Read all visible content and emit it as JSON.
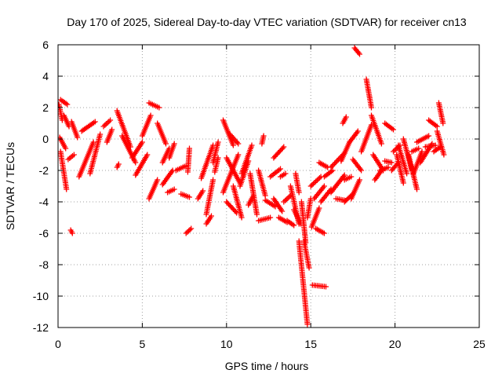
{
  "chart_data": {
    "type": "scatter",
    "title": "Day 170 of 2025, Sidereal Day-to-day VTEC variation (SDTVAR) for receiver cn13",
    "xlabel": "GPS time / hours",
    "ylabel": "SDTVAR / TECUs",
    "xlim": [
      0,
      25
    ],
    "ylim": [
      -12,
      6
    ],
    "xticks": [
      0,
      5,
      10,
      15,
      20,
      25
    ],
    "yticks": [
      -12,
      -10,
      -8,
      -6,
      -4,
      -2,
      0,
      2,
      4,
      6
    ],
    "grid": true,
    "marker": "+",
    "series": [
      {
        "name": "SDTVAR",
        "color": "#ff0000",
        "segments": [
          {
            "from": [
              0.05,
              2.2
            ],
            "to": [
              0.25,
              1.2
            ]
          },
          {
            "from": [
              0.15,
              2.5
            ],
            "to": [
              0.55,
              2.2
            ]
          },
          {
            "from": [
              0.35,
              1.5
            ],
            "to": [
              0.65,
              0.8
            ]
          },
          {
            "from": [
              0.1,
              0.1
            ],
            "to": [
              0.45,
              -0.6
            ]
          },
          {
            "from": [
              0.15,
              -0.8
            ],
            "to": [
              0.5,
              -3.2
            ]
          },
          {
            "from": [
              0.75,
              -5.8
            ],
            "to": [
              0.85,
              -6.0
            ]
          },
          {
            "from": [
              0.6,
              -1.3
            ],
            "to": [
              0.95,
              -1.0
            ]
          },
          {
            "from": [
              0.8,
              1.1
            ],
            "to": [
              1.15,
              0.1
            ]
          },
          {
            "from": [
              1.25,
              -2.4
            ],
            "to": [
              2.1,
              -0.2
            ]
          },
          {
            "from": [
              1.4,
              0.5
            ],
            "to": [
              2.2,
              1.1
            ]
          },
          {
            "from": [
              1.9,
              -2.2
            ],
            "to": [
              2.5,
              0.3
            ]
          },
          {
            "from": [
              2.7,
              0.8
            ],
            "to": [
              3.1,
              1.2
            ]
          },
          {
            "from": [
              2.9,
              -0.2
            ],
            "to": [
              3.2,
              0.6
            ]
          },
          {
            "from": [
              3.5,
              -1.8
            ],
            "to": [
              3.6,
              -1.6
            ]
          },
          {
            "from": [
              3.5,
              1.8
            ],
            "to": [
              4.3,
              -0.5
            ]
          },
          {
            "from": [
              3.8,
              0.2
            ],
            "to": [
              4.6,
              -1.5
            ]
          },
          {
            "from": [
              4.4,
              -1.2
            ],
            "to": [
              5.0,
              -0.2
            ]
          },
          {
            "from": [
              4.6,
              -2.3
            ],
            "to": [
              5.3,
              -1.0
            ]
          },
          {
            "from": [
              5.0,
              0.2
            ],
            "to": [
              5.5,
              1.5
            ]
          },
          {
            "from": [
              5.4,
              2.3
            ],
            "to": [
              6.0,
              2.0
            ]
          },
          {
            "from": [
              5.4,
              -3.8
            ],
            "to": [
              5.9,
              -2.6
            ]
          },
          {
            "from": [
              5.9,
              1.0
            ],
            "to": [
              6.4,
              -0.3
            ]
          },
          {
            "from": [
              6.2,
              -2.9
            ],
            "to": [
              6.8,
              -2.0
            ]
          },
          {
            "from": [
              6.2,
              -1.5
            ],
            "to": [
              6.6,
              -0.6
            ]
          },
          {
            "from": [
              6.6,
              -1.2
            ],
            "to": [
              6.9,
              -0.3
            ]
          },
          {
            "from": [
              6.5,
              -3.4
            ],
            "to": [
              6.9,
              -3.2
            ]
          },
          {
            "from": [
              7.0,
              -2.0
            ],
            "to": [
              7.6,
              -1.7
            ]
          },
          {
            "from": [
              7.3,
              -3.5
            ],
            "to": [
              7.8,
              -3.7
            ]
          },
          {
            "from": [
              7.6,
              -6.0
            ],
            "to": [
              7.9,
              -5.7
            ]
          },
          {
            "from": [
              7.7,
              -2.1
            ],
            "to": [
              7.8,
              -0.6
            ]
          },
          {
            "from": [
              8.3,
              -3.8
            ],
            "to": [
              8.6,
              -3.3
            ]
          },
          {
            "from": [
              8.5,
              -2.5
            ],
            "to": [
              9.2,
              -0.4
            ]
          },
          {
            "from": [
              8.8,
              -4.8
            ],
            "to": [
              9.2,
              -2.6
            ]
          },
          {
            "from": [
              8.8,
              -5.4
            ],
            "to": [
              9.1,
              -4.9
            ]
          },
          {
            "from": [
              9.2,
              -1.5
            ],
            "to": [
              9.5,
              -0.2
            ]
          },
          {
            "from": [
              9.3,
              -2.1
            ],
            "to": [
              9.5,
              -1.2
            ]
          },
          {
            "from": [
              9.8,
              1.2
            ],
            "to": [
              10.4,
              -0.4
            ]
          },
          {
            "from": [
              9.8,
              -3.4
            ],
            "to": [
              10.7,
              -1.0
            ]
          },
          {
            "from": [
              10.0,
              -4.0
            ],
            "to": [
              10.6,
              -4.7
            ]
          },
          {
            "from": [
              10.0,
              -1.2
            ],
            "to": [
              10.8,
              -2.8
            ]
          },
          {
            "from": [
              10.4,
              -3.0
            ],
            "to": [
              10.9,
              -5.0
            ]
          },
          {
            "from": [
              10.2,
              0.3
            ],
            "to": [
              10.7,
              -0.3
            ]
          },
          {
            "from": [
              10.8,
              -3.0
            ],
            "to": [
              11.3,
              -1.4
            ]
          },
          {
            "from": [
              10.9,
              -2.2
            ],
            "to": [
              11.5,
              -0.4
            ]
          },
          {
            "from": [
              11.4,
              -2.2
            ],
            "to": [
              11.8,
              -4.8
            ]
          },
          {
            "from": [
              11.3,
              -4.2
            ],
            "to": [
              11.6,
              -3.6
            ]
          },
          {
            "from": [
              11.9,
              -2.0
            ],
            "to": [
              12.3,
              -3.6
            ]
          },
          {
            "from": [
              11.9,
              -5.2
            ],
            "to": [
              12.6,
              -5.0
            ]
          },
          {
            "from": [
              12.1,
              -0.3
            ],
            "to": [
              12.2,
              0.2
            ]
          },
          {
            "from": [
              12.3,
              -3.9
            ],
            "to": [
              12.9,
              -4.3
            ]
          },
          {
            "from": [
              12.6,
              -2.4
            ],
            "to": [
              13.2,
              -1.9
            ]
          },
          {
            "from": [
              12.8,
              -1.2
            ],
            "to": [
              13.4,
              -0.5
            ]
          },
          {
            "from": [
              12.8,
              -3.8
            ],
            "to": [
              13.3,
              -4.6
            ]
          },
          {
            "from": [
              13.1,
              -5.0
            ],
            "to": [
              13.6,
              -5.3
            ]
          },
          {
            "from": [
              13.2,
              -2.4
            ],
            "to": [
              13.5,
              -2.2
            ]
          },
          {
            "from": [
              13.4,
              -4.0
            ],
            "to": [
              13.8,
              -3.6
            ]
          },
          {
            "from": [
              13.6,
              -5.2
            ],
            "to": [
              14.0,
              -5.5
            ]
          },
          {
            "from": [
              13.8,
              -3.0
            ],
            "to": [
              14.3,
              -5.4
            ]
          },
          {
            "from": [
              14.0,
              -4.5
            ],
            "to": [
              14.4,
              -5.4
            ]
          },
          {
            "from": [
              14.1,
              -2.2
            ],
            "to": [
              14.3,
              -3.4
            ]
          },
          {
            "from": [
              14.3,
              -6.5
            ],
            "to": [
              14.8,
              -11.8
            ]
          },
          {
            "from": [
              14.45,
              -4.0
            ],
            "to": [
              14.7,
              -6.6
            ]
          },
          {
            "from": [
              14.6,
              -6.5
            ],
            "to": [
              14.9,
              -8.2
            ]
          },
          {
            "from": [
              14.8,
              -5.0
            ],
            "to": [
              15.0,
              -3.8
            ]
          },
          {
            "from": [
              15.0,
              -3.0
            ],
            "to": [
              15.6,
              -2.4
            ]
          },
          {
            "from": [
              15.05,
              -5.6
            ],
            "to": [
              15.5,
              -4.4
            ]
          },
          {
            "from": [
              15.1,
              -9.3
            ],
            "to": [
              15.9,
              -9.4
            ]
          },
          {
            "from": [
              15.2,
              -3.8
            ],
            "to": [
              15.8,
              -3.0
            ]
          },
          {
            "from": [
              15.3,
              -5.7
            ],
            "to": [
              15.8,
              -6.0
            ]
          },
          {
            "from": [
              15.5,
              -1.5
            ],
            "to": [
              16.0,
              -1.8
            ]
          },
          {
            "from": [
              15.6,
              -4.0
            ],
            "to": [
              16.2,
              -3.2
            ]
          },
          {
            "from": [
              15.8,
              -2.4
            ],
            "to": [
              16.3,
              -2.0
            ]
          },
          {
            "from": [
              16.2,
              -3.4
            ],
            "to": [
              17.0,
              -2.3
            ]
          },
          {
            "from": [
              16.2,
              -1.8
            ],
            "to": [
              17.0,
              -0.9
            ]
          },
          {
            "from": [
              16.8,
              -1.4
            ],
            "to": [
              17.3,
              -0.2
            ]
          },
          {
            "from": [
              16.9,
              1.0
            ],
            "to": [
              17.1,
              1.4
            ]
          },
          {
            "from": [
              16.5,
              -3.8
            ],
            "to": [
              17.0,
              -3.9
            ]
          },
          {
            "from": [
              17.0,
              -2.6
            ],
            "to": [
              17.4,
              -2.4
            ]
          },
          {
            "from": [
              17.0,
              -4.0
            ],
            "to": [
              17.5,
              -3.5
            ]
          },
          {
            "from": [
              17.4,
              -3.8
            ],
            "to": [
              17.9,
              -2.6
            ]
          },
          {
            "from": [
              17.3,
              -0.2
            ],
            "to": [
              17.8,
              0.5
            ]
          },
          {
            "from": [
              17.5,
              -1.3
            ],
            "to": [
              18.0,
              -2.0
            ]
          },
          {
            "from": [
              17.6,
              5.8
            ],
            "to": [
              17.9,
              5.4
            ]
          },
          {
            "from": [
              18.0,
              -0.8
            ],
            "to": [
              18.6,
              0.9
            ]
          },
          {
            "from": [
              18.3,
              3.8
            ],
            "to": [
              18.6,
              2.0
            ]
          },
          {
            "from": [
              18.6,
              1.5
            ],
            "to": [
              19.2,
              -0.3
            ]
          },
          {
            "from": [
              18.7,
              -1.0
            ],
            "to": [
              19.3,
              -2.0
            ]
          },
          {
            "from": [
              18.8,
              -2.6
            ],
            "to": [
              19.2,
              -2.0
            ]
          },
          {
            "from": [
              19.1,
              -2.0
            ],
            "to": [
              19.6,
              -1.8
            ]
          },
          {
            "from": [
              19.4,
              1.0
            ],
            "to": [
              19.9,
              0.6
            ]
          },
          {
            "from": [
              19.4,
              -1.4
            ],
            "to": [
              19.8,
              -1.5
            ]
          },
          {
            "from": [
              19.8,
              -2.0
            ],
            "to": [
              20.2,
              -1.5
            ]
          },
          {
            "from": [
              19.9,
              -0.8
            ],
            "to": [
              20.3,
              -0.4
            ]
          },
          {
            "from": [
              20.1,
              -1.0
            ],
            "to": [
              20.5,
              -2.8
            ]
          },
          {
            "from": [
              20.2,
              -0.4
            ],
            "to": [
              20.7,
              -2.2
            ]
          },
          {
            "from": [
              20.5,
              0.0
            ],
            "to": [
              21.0,
              -2.0
            ]
          },
          {
            "from": [
              20.8,
              -1.0
            ],
            "to": [
              21.3,
              -3.2
            ]
          },
          {
            "from": [
              21.0,
              -0.8
            ],
            "to": [
              21.4,
              -0.6
            ]
          },
          {
            "from": [
              21.1,
              -2.2
            ],
            "to": [
              21.6,
              -0.8
            ]
          },
          {
            "from": [
              21.3,
              -0.2
            ],
            "to": [
              22.0,
              0.2
            ]
          },
          {
            "from": [
              21.5,
              -1.5
            ],
            "to": [
              22.2,
              -0.3
            ]
          },
          {
            "from": [
              21.8,
              -0.5
            ],
            "to": [
              22.4,
              -0.4
            ]
          },
          {
            "from": [
              22.0,
              1.2
            ],
            "to": [
              22.5,
              0.8
            ]
          },
          {
            "from": [
              22.3,
              -0.8
            ],
            "to": [
              22.7,
              -0.5
            ]
          },
          {
            "from": [
              22.5,
              0.5
            ],
            "to": [
              22.9,
              -1.0
            ]
          },
          {
            "from": [
              22.6,
              2.3
            ],
            "to": [
              22.85,
              1.0
            ]
          }
        ]
      }
    ]
  }
}
